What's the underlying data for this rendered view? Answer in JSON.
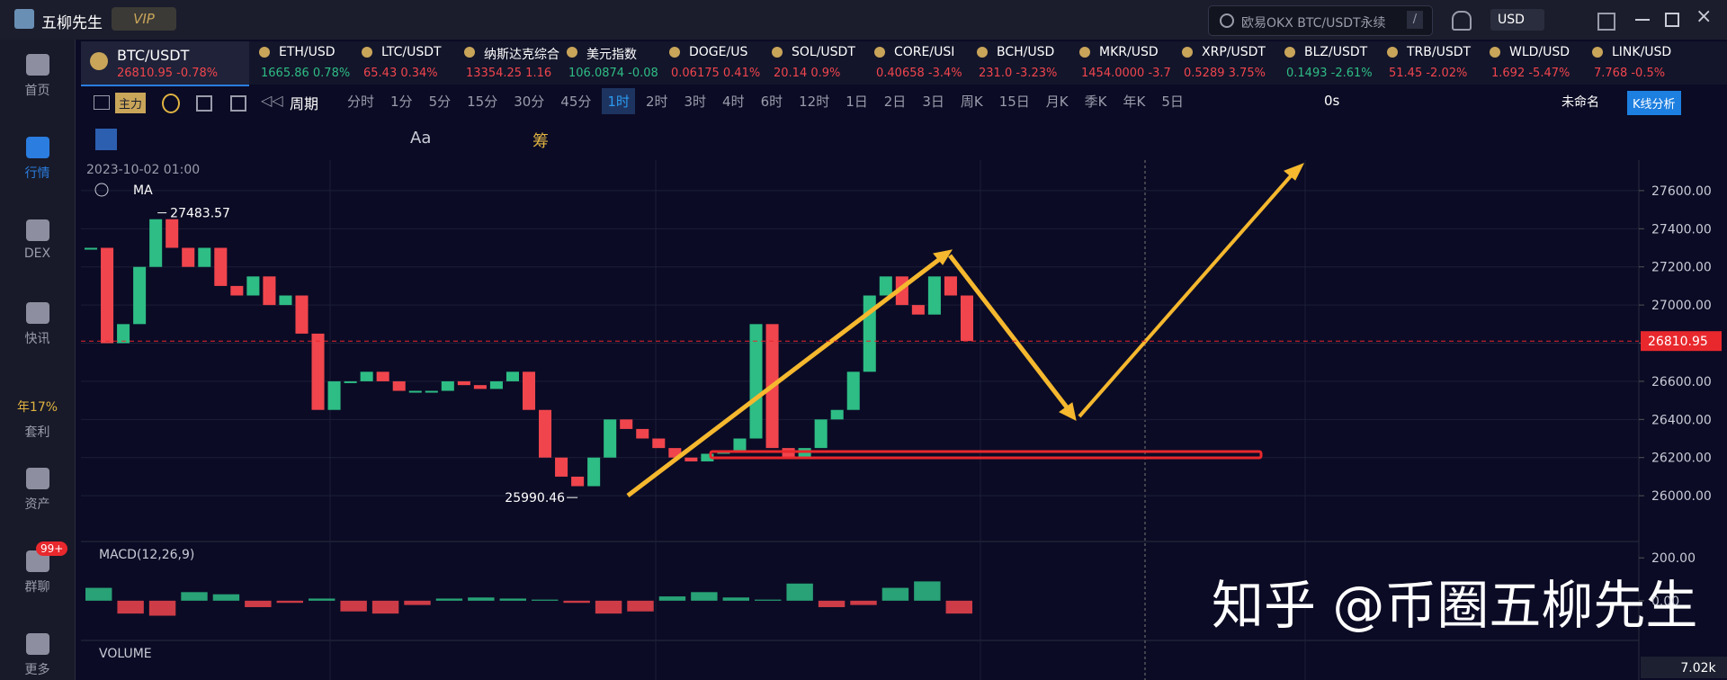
{
  "app": {
    "name": "五柳先生",
    "badge": "VIP",
    "search": "欧易OKX BTC/USDT永续",
    "search_key": "/",
    "currency": "USD"
  },
  "sidebar": [
    {
      "label": "首页"
    },
    {
      "label": "行情"
    },
    {
      "label": "DEX"
    },
    {
      "label": "快讯"
    },
    {
      "tag": "年17%",
      "label": "套利"
    },
    {
      "label": "资产"
    },
    {
      "label": "群聊",
      "badge": "99+"
    },
    {
      "label": "更多"
    }
  ],
  "tickers": [
    {
      "symbol": "BTC/USDT",
      "price": "26810.95",
      "change": "-0.78%",
      "color": "#f0454d"
    },
    {
      "symbol": "ETH/USD",
      "price": "1665.86",
      "change": "0.78%",
      "color": "#2ebd85"
    },
    {
      "symbol": "LTC/USDT",
      "price": "65.43",
      "change": "0.34%",
      "color": "#f0454d"
    },
    {
      "symbol": "纳斯达克综合",
      "price": "13354.25",
      "change": "1.16",
      "color": "#f0454d"
    },
    {
      "symbol": "美元指数",
      "price": "106.0874",
      "change": "-0.08",
      "color": "#2ebd85"
    },
    {
      "symbol": "DOGE/US",
      "price": "0.06175",
      "change": "0.41%",
      "color": "#f0454d"
    },
    {
      "symbol": "SOL/USDT",
      "price": "20.14",
      "change": "0.9%",
      "color": "#f0454d"
    },
    {
      "symbol": "CORE/USI",
      "price": "0.40658",
      "change": "-3.4%",
      "color": "#f0454d"
    },
    {
      "symbol": "BCH/USD",
      "price": "231.0",
      "change": "-3.23%",
      "color": "#f0454d"
    },
    {
      "symbol": "MKR/USD",
      "price": "1454.0000",
      "change": "-3.7",
      "color": "#f0454d"
    },
    {
      "symbol": "XRP/USDT",
      "price": "0.5289",
      "change": "3.75%",
      "color": "#f0454d"
    },
    {
      "symbol": "BLZ/USDT",
      "price": "0.1493",
      "change": "-2.61%",
      "color": "#2ebd85"
    },
    {
      "symbol": "TRB/USDT",
      "price": "51.45",
      "change": "-2.02%",
      "color": "#f0454d"
    },
    {
      "symbol": "WLD/USD",
      "price": "1.692",
      "change": "-5.47%",
      "color": "#f0454d"
    },
    {
      "symbol": "LINK/USD",
      "price": "7.768",
      "change": "-0.5%",
      "color": "#f0454d"
    }
  ],
  "toolbar": {
    "main": "主力",
    "period": "周期",
    "timeframes": [
      "分时",
      "1分",
      "5分",
      "15分",
      "30分",
      "45分",
      "1时",
      "2时",
      "3时",
      "4时",
      "6时",
      "12时",
      "1日",
      "2日",
      "3日",
      "周K",
      "15日",
      "月K",
      "季K",
      "年K",
      "5日"
    ],
    "active": "1时",
    "timer": "0s",
    "layout_name": "未命名",
    "analysis": "K线分析"
  },
  "drawing_tools": {
    "text": "Aa",
    "chip": "筹"
  },
  "chart_data": {
    "type": "candlestick",
    "timestamp": "2023-10-02 01:00",
    "indicator": "MA",
    "closes": [
      27300,
      26800,
      26900,
      27200,
      27450,
      27300,
      27200,
      27300,
      27100,
      27050,
      27150,
      27000,
      27050,
      26850,
      26450,
      26600,
      26600,
      26650,
      26600,
      26550,
      26550,
      26550,
      26600,
      26580,
      26560,
      26600,
      26650,
      26450,
      26200,
      26100,
      26050,
      26200,
      26400,
      26350,
      26300,
      26250,
      26200,
      26180,
      26220,
      26230,
      26300,
      26900,
      26250,
      26200,
      26250,
      26400,
      26450,
      26650,
      27050,
      27150,
      27000,
      26950,
      27150,
      27050,
      26810.95
    ],
    "ylim": [
      25760,
      27760
    ],
    "yticks": [
      {
        "value": 27600,
        "label": "27600.00"
      },
      {
        "value": 27400,
        "label": "27400.00"
      },
      {
        "value": 27200,
        "label": "27200.00"
      },
      {
        "value": 27000,
        "label": "27000.00"
      },
      {
        "value": 26800,
        "label": "26800.00"
      },
      {
        "value": 26600,
        "label": "26600.00"
      },
      {
        "value": 26400,
        "label": "26400.00"
      },
      {
        "value": 26200,
        "label": "26200.00"
      },
      {
        "value": 26000,
        "label": "26000.00"
      }
    ],
    "last_price": 26810.95,
    "high_label": 27483.57,
    "low_label": 25990.46,
    "macd": {
      "title": "MACD(12,26,9)",
      "histogram": [
        60,
        -60,
        -70,
        40,
        30,
        -30,
        -10,
        10,
        -50,
        -60,
        -20,
        10,
        15,
        10,
        5,
        -10,
        -60,
        -50,
        20,
        40,
        15,
        5,
        80,
        -30,
        -20,
        60,
        90,
        -60
      ],
      "ylim": [
        -177,
        268
      ],
      "yticks": [
        {
          "value": 200,
          "label": "200.00"
        },
        {
          "value": 0,
          "label": "0.00"
        }
      ]
    },
    "volume": {
      "title": "VOLUME",
      "last": "7.02k"
    }
  },
  "watermark": "知乎 @币圈五柳先生"
}
